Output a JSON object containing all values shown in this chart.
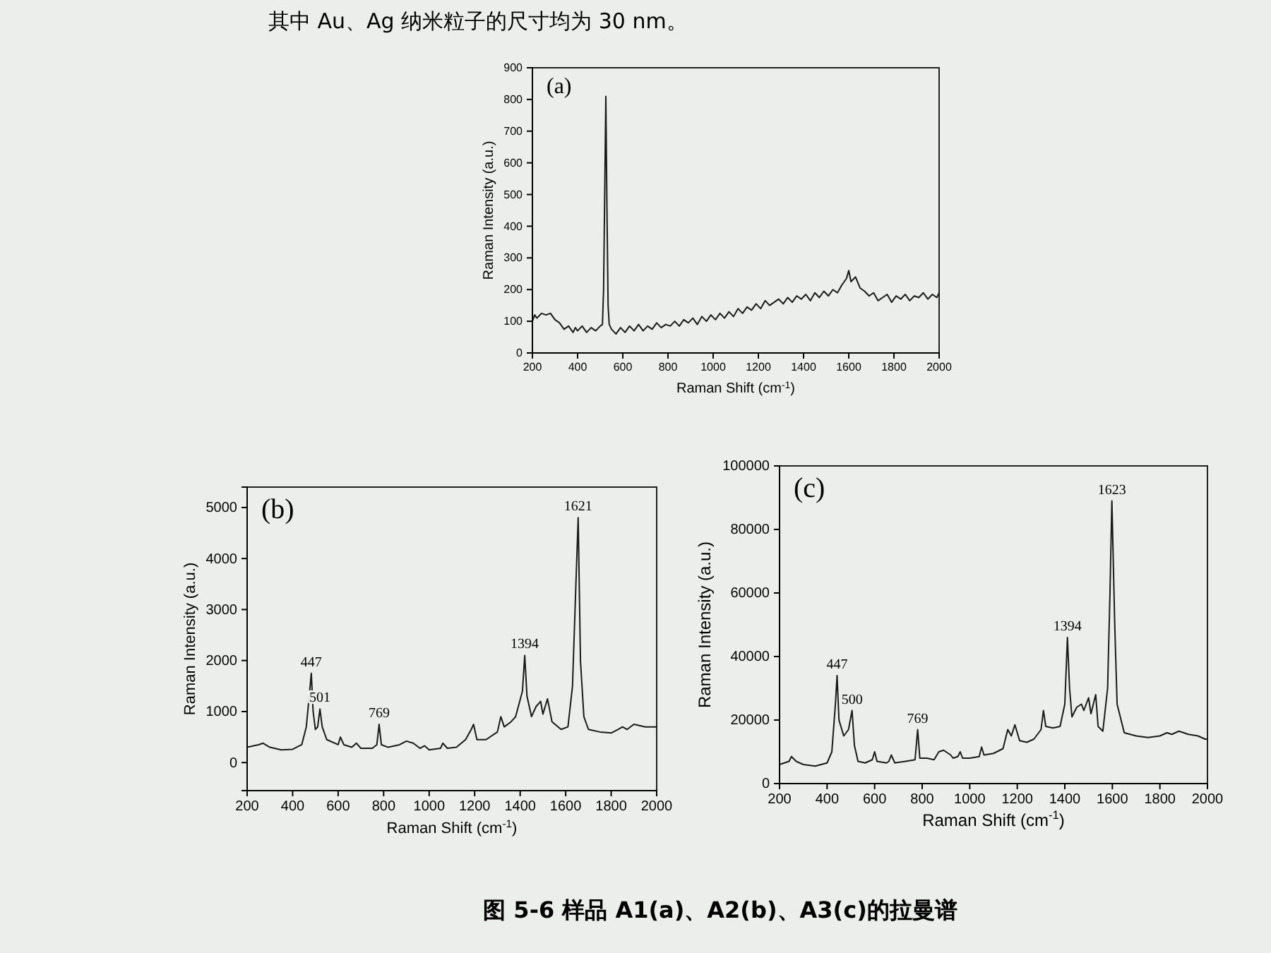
{
  "chart_data": [
    {
      "type": "line",
      "title": "(a)",
      "xlabel": "Raman Shift (cm$^{-1}$)",
      "ylabel": "Raman Intensity (a.u.)",
      "annotations": [
        "其中 Au、Ag 纳米粒子的尺寸均为 30 nm。"
      ],
      "xlim": [
        200,
        2000
      ],
      "ylim": [
        0,
        900
      ],
      "xticks": [
        200,
        400,
        600,
        800,
        1000,
        1200,
        1400,
        1600,
        1800,
        2000
      ],
      "yticks": [
        0,
        100,
        200,
        300,
        400,
        500,
        600,
        700,
        800,
        900
      ],
      "x": [
        200,
        210,
        220,
        240,
        260,
        280,
        300,
        320,
        340,
        360,
        380,
        390,
        400,
        420,
        440,
        460,
        480,
        500,
        510,
        515,
        520,
        525,
        530,
        535,
        540,
        550,
        570,
        590,
        610,
        630,
        650,
        670,
        690,
        710,
        730,
        750,
        770,
        790,
        810,
        830,
        850,
        870,
        890,
        910,
        930,
        950,
        970,
        990,
        1010,
        1030,
        1050,
        1070,
        1090,
        1110,
        1130,
        1150,
        1170,
        1190,
        1210,
        1230,
        1250,
        1270,
        1290,
        1310,
        1330,
        1350,
        1370,
        1390,
        1410,
        1430,
        1450,
        1470,
        1490,
        1510,
        1530,
        1550,
        1570,
        1590,
        1600,
        1610,
        1630,
        1650,
        1670,
        1690,
        1710,
        1730,
        1750,
        1770,
        1790,
        1810,
        1830,
        1850,
        1870,
        1890,
        1910,
        1930,
        1950,
        1970,
        1990,
        2000
      ],
      "series": [
        {
          "color": "#1a1a1a",
          "values": [
            100,
            120,
            110,
            125,
            120,
            125,
            105,
            95,
            75,
            85,
            65,
            80,
            70,
            85,
            65,
            80,
            70,
            85,
            90,
            200,
            500,
            810,
            450,
            150,
            90,
            75,
            60,
            80,
            65,
            85,
            70,
            90,
            70,
            85,
            75,
            95,
            80,
            90,
            85,
            100,
            85,
            105,
            95,
            110,
            90,
            115,
            100,
            120,
            105,
            125,
            110,
            130,
            115,
            140,
            125,
            145,
            135,
            155,
            140,
            165,
            150,
            160,
            170,
            155,
            175,
            160,
            180,
            170,
            185,
            165,
            190,
            175,
            195,
            180,
            200,
            190,
            215,
            235,
            260,
            225,
            240,
            205,
            195,
            180,
            190,
            165,
            175,
            185,
            160,
            180,
            170,
            185,
            165,
            180,
            175,
            190,
            170,
            185,
            175,
            190
          ]
        }
      ]
    },
    {
      "type": "line",
      "title": "(b)",
      "xlabel": "Raman Shift (cm$^{-1}$)",
      "ylabel": "Raman Intensity (a.u.)",
      "xlim": [
        200,
        2000
      ],
      "ylim": [
        -550,
        5400
      ],
      "xticks": [
        200,
        400,
        600,
        800,
        1000,
        1200,
        1400,
        1600,
        1800,
        2000
      ],
      "yticks": [
        0,
        1000,
        2000,
        3000,
        4000,
        5000
      ],
      "annotations": [
        {
          "text": "447",
          "x": 482,
          "y": 1750
        },
        {
          "text": "501",
          "x": 520,
          "y": 1050
        },
        {
          "text": "769",
          "x": 780,
          "y": 750
        },
        {
          "text": "1394",
          "x": 1420,
          "y": 2100
        },
        {
          "text": "1621",
          "x": 1655,
          "y": 4800
        }
      ],
      "x": [
        200,
        250,
        270,
        300,
        350,
        400,
        440,
        460,
        475,
        482,
        490,
        500,
        510,
        520,
        530,
        550,
        600,
        610,
        625,
        660,
        680,
        700,
        750,
        770,
        780,
        790,
        820,
        870,
        900,
        930,
        960,
        980,
        1000,
        1050,
        1060,
        1080,
        1120,
        1160,
        1185,
        1195,
        1210,
        1250,
        1300,
        1315,
        1330,
        1360,
        1380,
        1410,
        1420,
        1430,
        1450,
        1470,
        1490,
        1500,
        1520,
        1540,
        1580,
        1610,
        1630,
        1645,
        1655,
        1665,
        1680,
        1700,
        1750,
        1800,
        1830,
        1850,
        1870,
        1900,
        1950,
        2000
      ],
      "series": [
        {
          "color": "#1a1a1a",
          "values": [
            300,
            350,
            380,
            300,
            250,
            260,
            350,
            700,
            1400,
            1750,
            1000,
            650,
            700,
            1050,
            700,
            450,
            350,
            500,
            350,
            300,
            380,
            280,
            280,
            350,
            750,
            350,
            300,
            350,
            420,
            380,
            280,
            330,
            250,
            280,
            380,
            280,
            300,
            450,
            650,
            750,
            450,
            450,
            600,
            900,
            700,
            800,
            900,
            1400,
            2100,
            1300,
            900,
            1100,
            1200,
            950,
            1250,
            800,
            650,
            700,
            1500,
            3500,
            4800,
            2000,
            900,
            650,
            600,
            580,
            650,
            700,
            650,
            750,
            700,
            700
          ]
        }
      ]
    },
    {
      "type": "line",
      "title": "(c)",
      "xlabel": "Raman Shift (cm$^{-1}$)",
      "ylabel": "Raman Intensity (a.u.)",
      "xlim": [
        200,
        2000
      ],
      "ylim": [
        0,
        100000
      ],
      "xticks": [
        200,
        400,
        600,
        800,
        1000,
        1200,
        1400,
        1600,
        1800,
        2000
      ],
      "yticks": [
        0,
        20000,
        40000,
        60000,
        80000,
        100000
      ],
      "annotations": [
        {
          "text": "447",
          "x": 442,
          "y": 34000
        },
        {
          "text": "500",
          "x": 505,
          "y": 23000
        },
        {
          "text": "769",
          "x": 781,
          "y": 17000
        },
        {
          "text": "1394",
          "x": 1411,
          "y": 46000
        },
        {
          "text": "1623",
          "x": 1598,
          "y": 89000
        },
        "图 5-6 样品 A1(a)、A2(b)、A3(c)的拉曼谱"
      ],
      "x": [
        200,
        240,
        250,
        270,
        300,
        350,
        400,
        420,
        435,
        442,
        450,
        470,
        490,
        505,
        515,
        530,
        560,
        590,
        600,
        610,
        650,
        660,
        670,
        685,
        730,
        770,
        781,
        790,
        820,
        850,
        870,
        890,
        920,
        930,
        950,
        960,
        970,
        1000,
        1040,
        1050,
        1060,
        1100,
        1140,
        1160,
        1175,
        1190,
        1210,
        1240,
        1270,
        1300,
        1310,
        1320,
        1350,
        1380,
        1400,
        1411,
        1420,
        1430,
        1450,
        1470,
        1480,
        1500,
        1510,
        1530,
        1540,
        1560,
        1580,
        1590,
        1598,
        1610,
        1620,
        1650,
        1700,
        1750,
        1800,
        1830,
        1850,
        1880,
        1920,
        1960,
        1990,
        2000
      ],
      "series": [
        {
          "color": "#1a1a1a",
          "values": [
            6000,
            7000,
            8500,
            7000,
            6000,
            5500,
            6500,
            10000,
            25000,
            34000,
            20000,
            15000,
            17000,
            23000,
            12000,
            7000,
            6500,
            7500,
            10000,
            7000,
            6500,
            7000,
            9000,
            6500,
            7000,
            7500,
            17000,
            8000,
            8000,
            7500,
            10000,
            10500,
            9000,
            8000,
            8500,
            10000,
            8000,
            8000,
            8500,
            11500,
            9000,
            9500,
            11000,
            17000,
            15000,
            18500,
            13500,
            13000,
            14000,
            17000,
            23000,
            18000,
            17500,
            18000,
            25000,
            46000,
            30000,
            21000,
            24000,
            25000,
            23000,
            27000,
            22000,
            28000,
            18000,
            16500,
            30000,
            60000,
            89000,
            50000,
            25000,
            16000,
            15000,
            14500,
            15000,
            16000,
            15500,
            16500,
            15500,
            15000,
            14000,
            14000
          ]
        }
      ]
    }
  ]
}
